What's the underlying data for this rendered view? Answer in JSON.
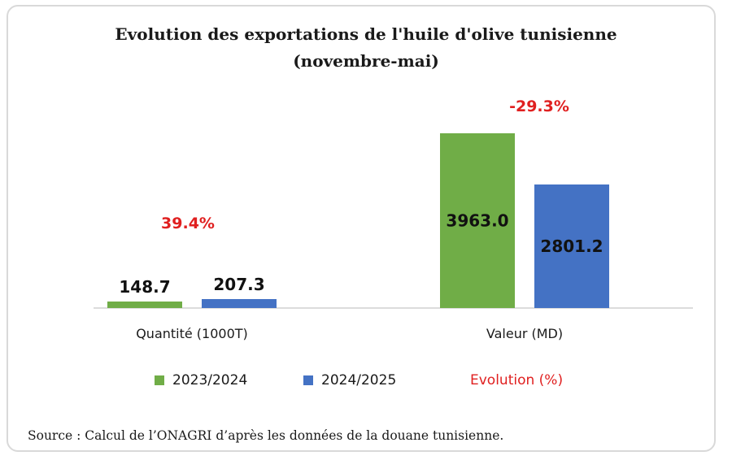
{
  "chart_data": {
    "type": "bar",
    "title": "Evolution des exportations de l'huile d'olive tunisienne",
    "subtitle": "(novembre-mai)",
    "categories": [
      "Quantité (1000T)",
      "Valeur (MD)"
    ],
    "series": [
      {
        "name": "2023/2024",
        "values": [
          148.7,
          3963.0
        ],
        "labels": [
          "148.7",
          "3963.0"
        ],
        "color": "#70ad47"
      },
      {
        "name": "2024/2025",
        "values": [
          207.3,
          2801.2
        ],
        "labels": [
          "207.3",
          "2801.2"
        ],
        "color": "#4472c4"
      }
    ],
    "evolution": {
      "name": "Evolution (%)",
      "labels": [
        "39.4%",
        "-29.3%"
      ],
      "color": "#e02020"
    },
    "ylim": [
      0,
      4000
    ],
    "grid": false,
    "legend_position": "bottom"
  },
  "source": "Source : Calcul de l’ONAGRI d’après les données de la douane tunisienne."
}
